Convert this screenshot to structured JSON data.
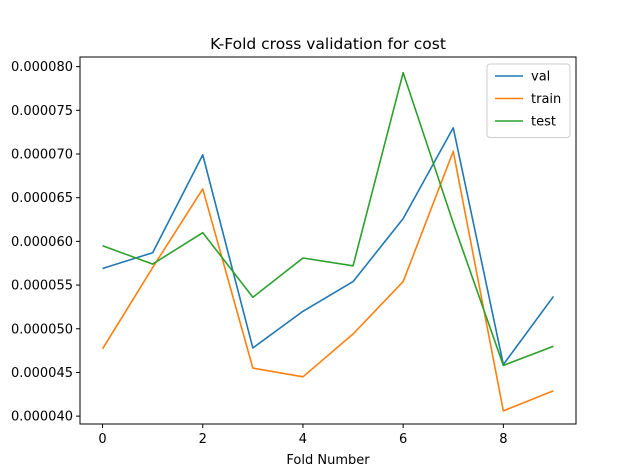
{
  "chart_data": {
    "type": "line",
    "title": "K-Fold cross validation for cost",
    "xlabel": "Fold Number",
    "ylabel": "",
    "x": [
      0,
      1,
      2,
      3,
      4,
      5,
      6,
      7,
      8,
      9
    ],
    "xlim": [
      -0.45,
      9.45
    ],
    "ylim": [
      3.91e-05,
      8.11e-05
    ],
    "xticks": [
      0,
      2,
      4,
      6,
      8
    ],
    "yticks": [
      "0.000040",
      "0.000045",
      "0.000050",
      "0.000055",
      "0.000060",
      "0.000065",
      "0.000070",
      "0.000075",
      "0.000080"
    ],
    "legend_position": "top-right",
    "grid": false,
    "series": [
      {
        "name": "val",
        "color": "#1f77b4",
        "values": [
          5.69e-05,
          5.87e-05,
          6.99e-05,
          4.78e-05,
          5.2e-05,
          5.54e-05,
          6.26e-05,
          7.3e-05,
          4.59e-05,
          5.37e-05
        ]
      },
      {
        "name": "train",
        "color": "#ff7f0e",
        "values": [
          4.77e-05,
          5.7e-05,
          6.6e-05,
          4.55e-05,
          4.45e-05,
          4.94e-05,
          5.54e-05,
          7.03e-05,
          4.06e-05,
          4.29e-05
        ]
      },
      {
        "name": "test",
        "color": "#2ca02c",
        "values": [
          5.95e-05,
          5.74e-05,
          6.1e-05,
          5.36e-05,
          5.81e-05,
          5.72e-05,
          7.93e-05,
          6.21e-05,
          4.58e-05,
          4.8e-05
        ]
      }
    ]
  }
}
